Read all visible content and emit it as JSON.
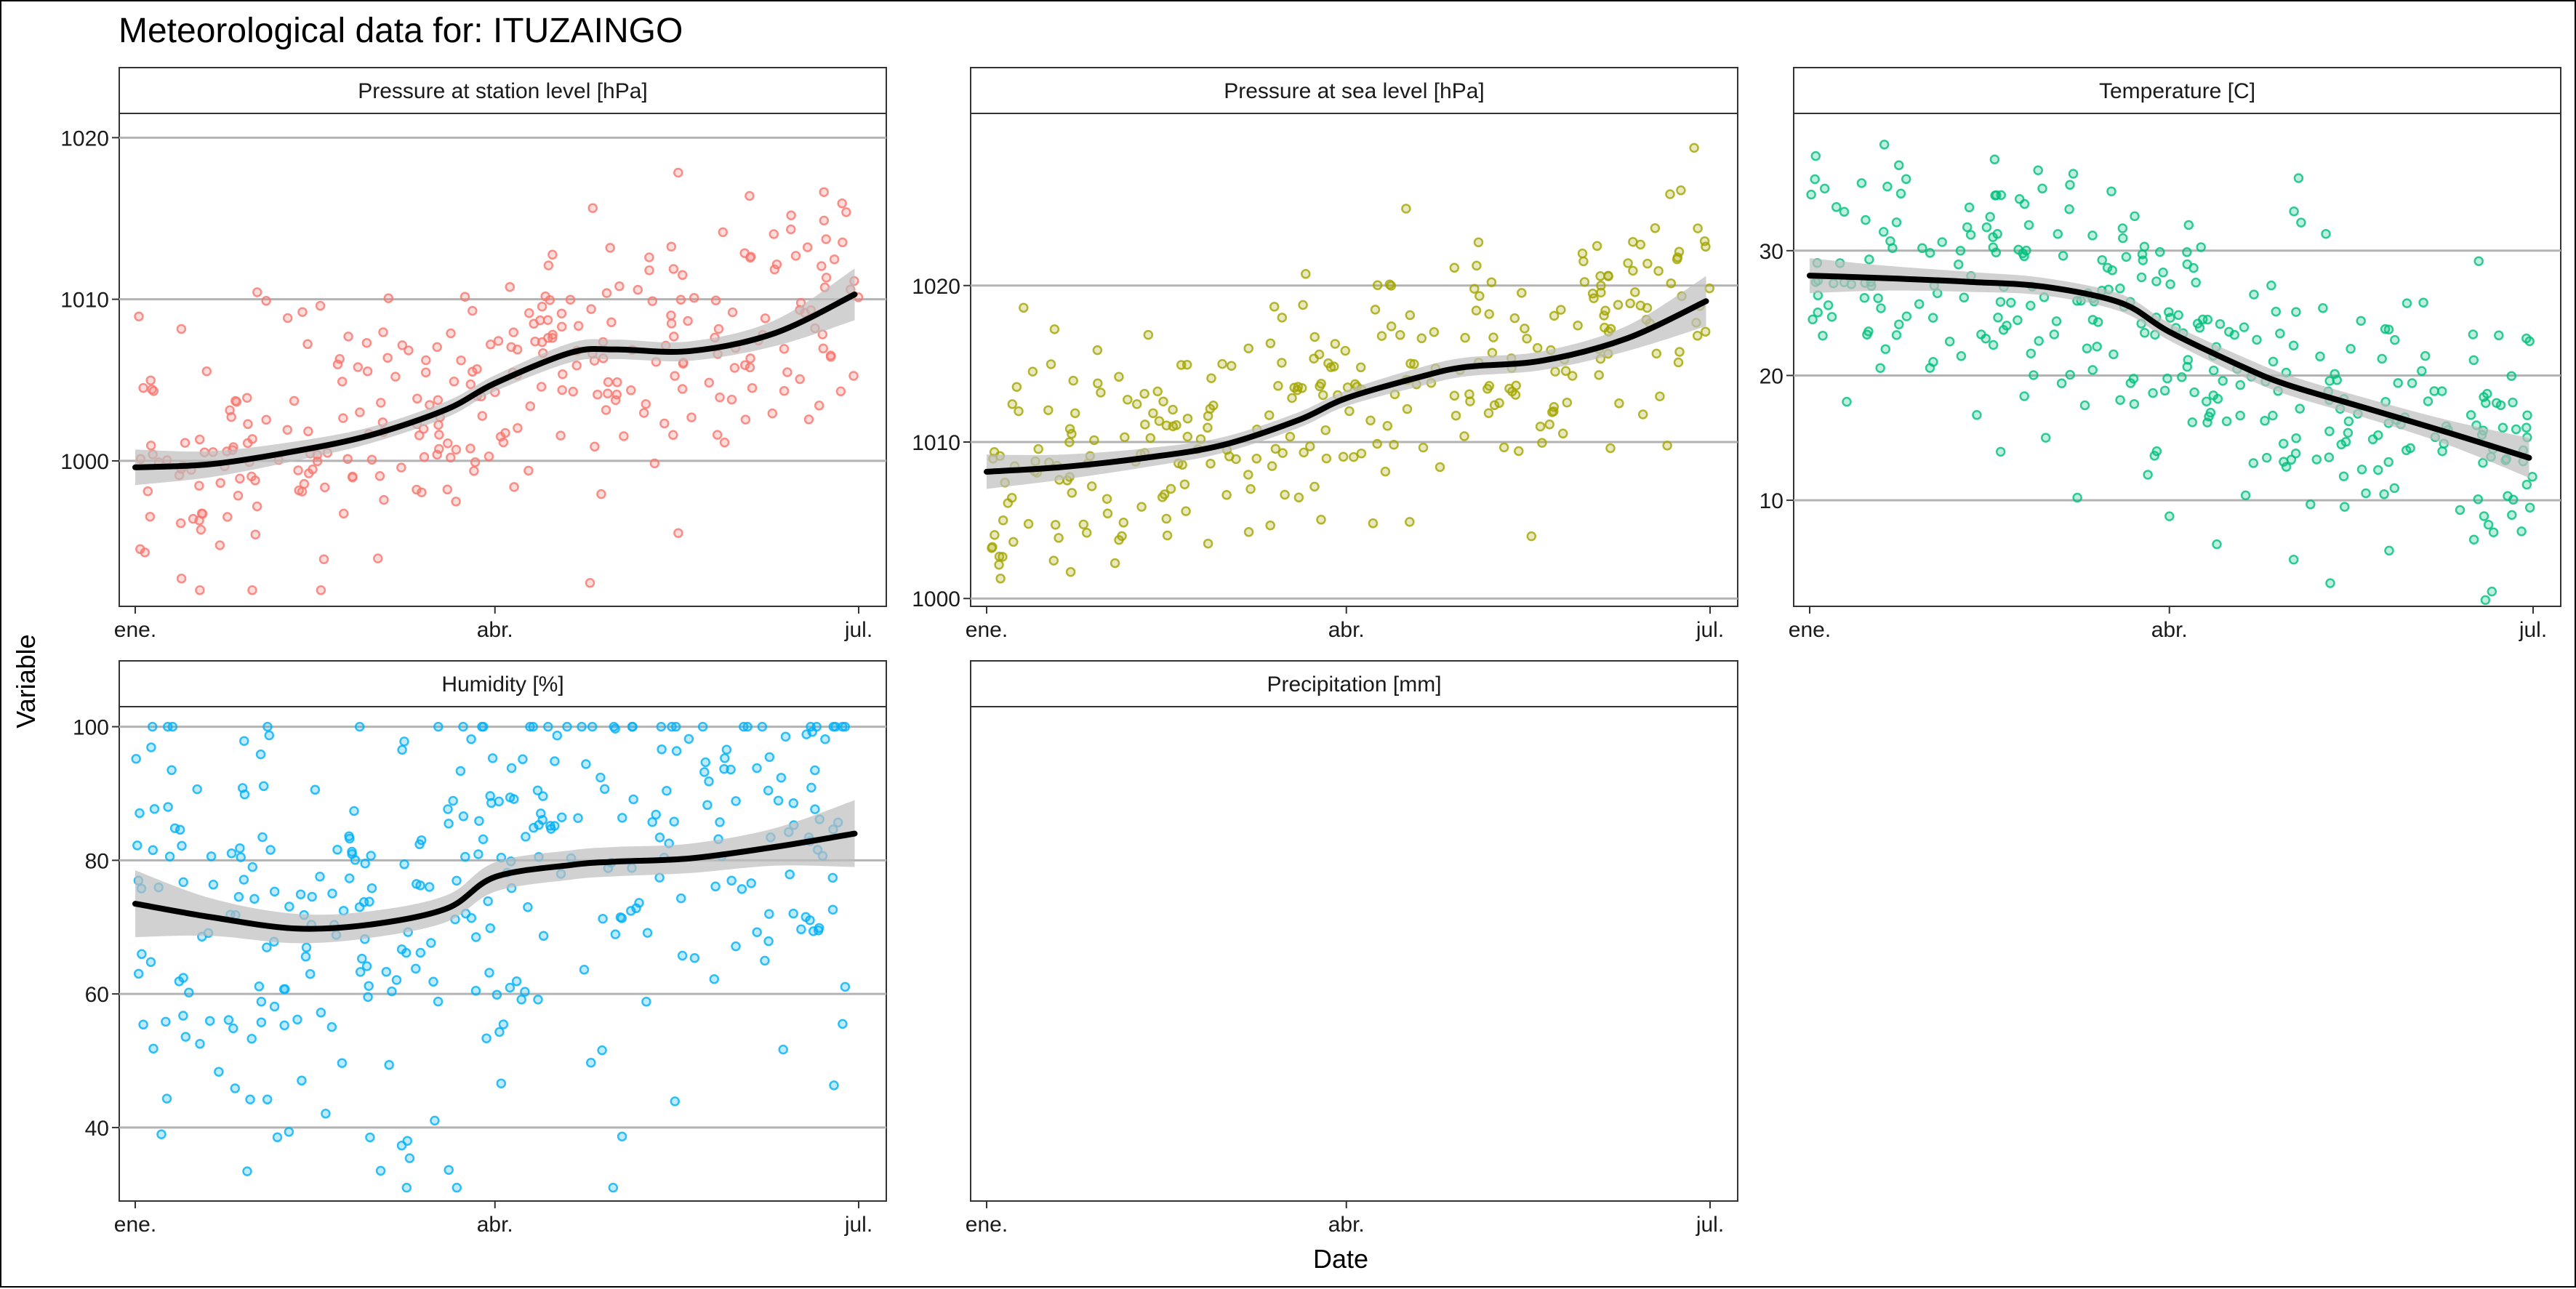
{
  "figure": {
    "title": "Meteorological data for: ITUZAINGO",
    "xlabel": "Date",
    "ylabel": "Variable"
  },
  "colors": {
    "station_pressure": "#F8766D",
    "sea_pressure": "#A3A500",
    "temperature": "#00BF7D",
    "humidity": "#00B0F6",
    "smooth_line": "#000000",
    "confidence_band": "#bdbdbd",
    "grid": "#b3b3b3",
    "strip_fill": "#ffffff",
    "strip_border": "#333333"
  },
  "chart_data": [
    {
      "type": "scatter",
      "panel": "Pressure at station level [hPa]",
      "x_range": [
        "ene.",
        "jul."
      ],
      "x_ticks": [
        "ene.",
        "abr.",
        "jul."
      ],
      "y_ticks": [
        1000,
        1010,
        1020
      ],
      "ylim": [
        991,
        1021.5
      ],
      "grid": true,
      "points": {
        "n": 300,
        "y_min": 992,
        "y_max": 1019.8,
        "seed": 11,
        "noise": 3.8,
        "alpha": 0.45
      },
      "smooth": {
        "x": [
          "2017-01-01",
          "2017-01-20",
          "2017-02-10",
          "2017-03-01",
          "2017-03-20",
          "2017-04-01",
          "2017-04-20",
          "2017-05-01",
          "2017-05-20",
          "2017-06-10",
          "2017-06-30"
        ],
        "y": [
          999.6,
          999.8,
          1000.6,
          1001.6,
          1003.2,
          1004.8,
          1006.7,
          1006.9,
          1006.8,
          1007.9,
          1010.3
        ],
        "band_halfwidth": [
          1.1,
          0.8,
          0.6,
          0.5,
          0.5,
          0.5,
          0.6,
          0.6,
          0.6,
          0.8,
          1.6
        ]
      }
    },
    {
      "type": "scatter",
      "panel": "Pressure at sea level [hPa]",
      "x_range": [
        "ene.",
        "jul."
      ],
      "x_ticks": [
        "ene.",
        "abr.",
        "jul."
      ],
      "y_ticks": [
        1000,
        1010,
        1020
      ],
      "ylim": [
        999.5,
        1031
      ],
      "grid": true,
      "points": {
        "n": 300,
        "y_min": 1000.2,
        "y_max": 1028.8,
        "seed": 23,
        "noise": 3.8,
        "alpha": 0.45
      },
      "smooth": {
        "x": [
          "2017-01-01",
          "2017-01-20",
          "2017-02-10",
          "2017-03-01",
          "2017-03-20",
          "2017-04-01",
          "2017-04-20",
          "2017-05-01",
          "2017-05-20",
          "2017-06-10",
          "2017-06-30"
        ],
        "y": [
          1008.1,
          1008.4,
          1009.0,
          1009.8,
          1011.4,
          1012.8,
          1014.2,
          1014.8,
          1015.2,
          1016.6,
          1019.0
        ],
        "band_halfwidth": [
          1.1,
          0.8,
          0.6,
          0.5,
          0.5,
          0.5,
          0.6,
          0.6,
          0.6,
          0.8,
          1.6
        ]
      }
    },
    {
      "type": "scatter",
      "panel": "Temperature [C]",
      "x_range": [
        "ene.",
        "jul."
      ],
      "x_ticks": [
        "ene.",
        "abr.",
        "jul."
      ],
      "y_ticks": [
        10,
        20,
        30
      ],
      "ylim": [
        1.5,
        41
      ],
      "grid": true,
      "points": {
        "n": 330,
        "y_min": 2,
        "y_max": 38.5,
        "seed": 37,
        "noise": 5.5,
        "alpha": 0.45
      },
      "smooth": {
        "x": [
          "2017-01-01",
          "2017-01-20",
          "2017-02-10",
          "2017-03-01",
          "2017-03-20",
          "2017-04-01",
          "2017-04-20",
          "2017-05-01",
          "2017-05-20",
          "2017-06-10",
          "2017-06-30"
        ],
        "y": [
          28.0,
          27.8,
          27.5,
          27.1,
          25.8,
          23.5,
          20.6,
          19.2,
          17.4,
          15.4,
          13.4
        ],
        "band_halfwidth": [
          1.4,
          1.0,
          0.8,
          0.7,
          0.7,
          0.7,
          0.8,
          0.8,
          0.8,
          1.0,
          1.6
        ]
      }
    },
    {
      "type": "scatter",
      "panel": "Humidity [%]",
      "x_range": [
        "ene.",
        "jul."
      ],
      "x_ticks": [
        "ene.",
        "abr.",
        "jul."
      ],
      "y_ticks": [
        40,
        60,
        80,
        100
      ],
      "ylim": [
        29,
        103
      ],
      "grid": true,
      "points": {
        "n": 330,
        "y_min": 31,
        "y_max": 100,
        "seed": 53,
        "noise": 17,
        "alpha": 0.45
      },
      "smooth": {
        "x": [
          "2017-01-01",
          "2017-01-20",
          "2017-02-10",
          "2017-03-01",
          "2017-03-20",
          "2017-04-01",
          "2017-04-20",
          "2017-05-01",
          "2017-05-20",
          "2017-06-10",
          "2017-06-30"
        ],
        "y": [
          73.5,
          71.5,
          69.8,
          70.4,
          72.8,
          77.5,
          79.3,
          79.8,
          80.3,
          82.0,
          84.0
        ],
        "band_halfwidth": [
          5.0,
          2.8,
          2.2,
          2.0,
          2.0,
          2.2,
          2.2,
          2.2,
          2.2,
          2.8,
          5.0
        ]
      }
    },
    {
      "type": "scatter",
      "panel": "Precipitation [mm]",
      "x_range": [
        "ene.",
        "jul."
      ],
      "x_ticks": [
        "ene.",
        "abr.",
        "jul."
      ],
      "y_ticks": [],
      "grid": false,
      "empty": true
    }
  ]
}
